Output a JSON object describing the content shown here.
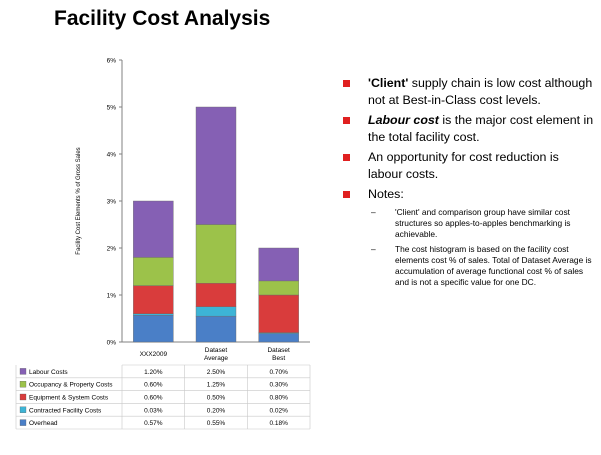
{
  "slide": {
    "title": "Facility Cost Analysis"
  },
  "bullets": [
    {
      "bold": "'Client'",
      "bold_italic": false,
      "text": " supply chain is low cost although not at Best-in-Class cost levels."
    },
    {
      "bold": "Labour cost",
      "bold_italic": true,
      "text": " is the major cost element in the total facility cost."
    },
    {
      "bold": "",
      "bold_italic": false,
      "text": "An opportunity for cost reduction is labour costs."
    },
    {
      "bold": "",
      "bold_italic": false,
      "text": "Notes:"
    }
  ],
  "subbullets": [
    {
      "text": "'Client' and comparison group have similar cost structures so apples-to-apples benchmarking is achievable."
    },
    {
      "text": "The cost histogram is based on the facility cost elements cost % of sales. Total of Dataset Average is accumulation of average functional cost % of sales and is not a specific value for one DC."
    }
  ],
  "chart_data": {
    "type": "bar",
    "stacked": true,
    "title": "",
    "xlabel": "",
    "ylabel": "Facility Cost Elements % of Gross Sales",
    "ylim": [
      0,
      6
    ],
    "yticks": [
      "0%",
      "1%",
      "2%",
      "3%",
      "4%",
      "5%",
      "6%"
    ],
    "categories": [
      "XXX2009",
      "Dataset Average",
      "Dataset Best"
    ],
    "series": [
      {
        "name": "Overhead",
        "values": [
          0.57,
          0.55,
          0.18
        ],
        "labels": [
          "0.57%",
          "0.55%",
          "0.18%"
        ],
        "color": "#4a7fc7"
      },
      {
        "name": "Contracted Facility Costs",
        "values": [
          0.03,
          0.2,
          0.02
        ],
        "labels": [
          "0.03%",
          "0.20%",
          "0.02%"
        ],
        "color": "#3db4d6"
      },
      {
        "name": "Equipment & System Costs",
        "values": [
          0.6,
          0.5,
          0.8
        ],
        "labels": [
          "0.60%",
          "0.50%",
          "0.80%"
        ],
        "color": "#d93c3c"
      },
      {
        "name": "Occupancy & Property Costs",
        "values": [
          0.6,
          1.25,
          0.3
        ],
        "labels": [
          "0.60%",
          "1.25%",
          "0.30%"
        ],
        "color": "#9cc24a"
      },
      {
        "name": "Labour Costs",
        "values": [
          1.2,
          2.5,
          0.7
        ],
        "labels": [
          "1.20%",
          "2.50%",
          "0.70%"
        ],
        "color": "#8560b4"
      }
    ],
    "grid": false,
    "legend": "table-below"
  }
}
